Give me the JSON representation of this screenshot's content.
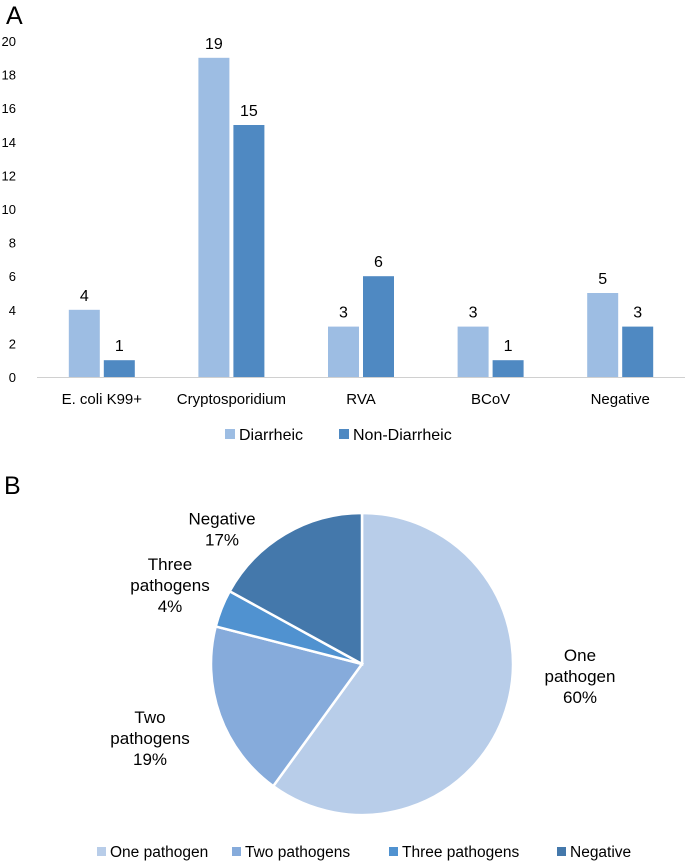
{
  "panels": {
    "a_label": "A",
    "b_label": "B"
  },
  "colors": {
    "diarrheic": "#9dbde3",
    "non_diarrheic": "#4f89c2",
    "axis": "#d0d0d0",
    "pie": [
      "#b8cde9",
      "#86abdb",
      "#5092d0",
      "#4478ab"
    ]
  },
  "chart_data": [
    {
      "type": "bar",
      "title": "",
      "xlabel": "",
      "ylabel": "",
      "ylim": [
        0,
        20
      ],
      "yticks": [
        "0",
        "2",
        "4",
        "6",
        "8",
        "10",
        "12",
        "14",
        "16",
        "18",
        "20"
      ],
      "grid": false,
      "legend_position": "bottom",
      "categories": [
        "E. coli K99+",
        "Cryptosporidium",
        "RVA",
        "BCoV",
        "Negative"
      ],
      "series": [
        {
          "name": "Diarrheic",
          "values": [
            4,
            19,
            3,
            3,
            5
          ],
          "labels": [
            "4",
            "19",
            "3",
            "3",
            "5"
          ]
        },
        {
          "name": "Non-Diarrheic",
          "values": [
            1,
            15,
            6,
            1,
            3
          ],
          "labels": [
            "1",
            "15",
            "6",
            "1",
            "3"
          ]
        }
      ]
    },
    {
      "type": "pie",
      "title": "",
      "legend_position": "bottom",
      "slices": [
        {
          "name": "One pathogen",
          "value": 60,
          "label_lines": [
            "One",
            "pathogen",
            "60%"
          ]
        },
        {
          "name": "Two pathogens",
          "value": 19,
          "label_lines": [
            "Two",
            "pathogens",
            "19%"
          ]
        },
        {
          "name": "Three pathogens",
          "value": 4,
          "label_lines": [
            "Three",
            "pathogens",
            "4%"
          ]
        },
        {
          "name": "Negative",
          "value": 17,
          "label_lines": [
            "Negative",
            "17%"
          ]
        }
      ]
    }
  ]
}
